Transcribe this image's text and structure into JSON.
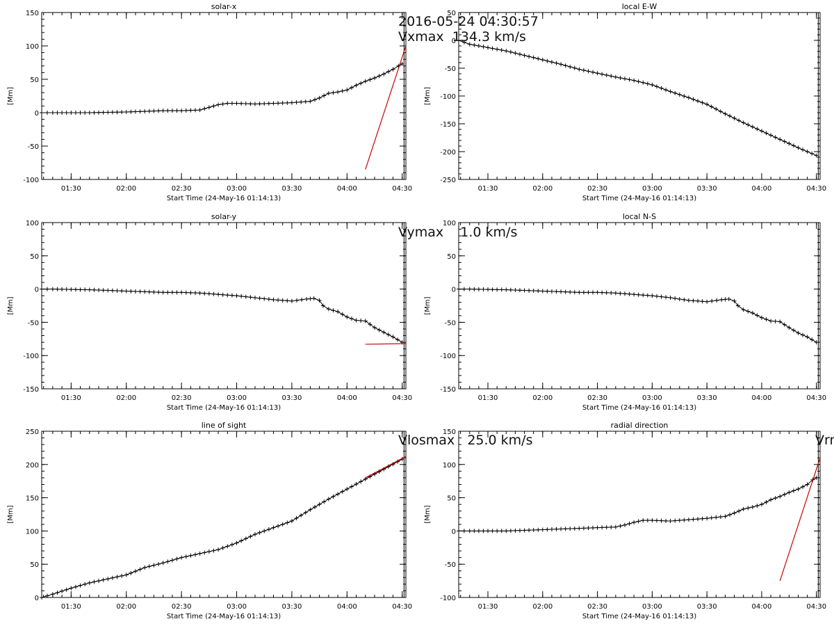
{
  "overlay": {
    "date": "2016-05-24 04:30:57",
    "vx": "Vxmax  134.3 km/s",
    "vy": "Vymax    1.0 km/s",
    "vlos": "Vlosmax   25.0 km/s",
    "vr": "Vrm"
  },
  "chart_data": [
    {
      "type": "line",
      "title": "solar-x",
      "xlabel": "Start Time (24-May-16 01:14:13)",
      "ylabel": "[Mm]",
      "x_ticks": [
        "01:30",
        "02:00",
        "02:30",
        "03:00",
        "03:30",
        "04:00",
        "04:30"
      ],
      "y_ticks": [
        -100,
        -50,
        0,
        50,
        100,
        150
      ],
      "xlim": [
        "01:14",
        "04:32"
      ],
      "ylim": [
        -100,
        150
      ],
      "series": [
        {
          "x": [
            "01:14",
            "01:20",
            "01:30",
            "01:40",
            "01:50",
            "02:00",
            "02:10",
            "02:20",
            "02:30",
            "02:40",
            "02:45",
            "02:50",
            "02:55",
            "03:00",
            "03:10",
            "03:20",
            "03:30",
            "03:40",
            "03:45",
            "03:50",
            "03:55",
            "04:00",
            "04:05",
            "04:10",
            "04:15",
            "04:20",
            "04:25",
            "04:28",
            "04:30"
          ],
          "values": [
            0,
            0,
            0,
            0,
            0.5,
            1,
            2,
            3,
            3,
            4,
            8,
            12,
            14,
            14,
            13,
            14,
            15,
            17,
            22,
            29,
            31,
            34,
            41,
            47,
            52,
            58,
            65,
            70,
            73
          ]
        }
      ],
      "fit_line": {
        "color": "#cc0000",
        "x": [
          "04:10",
          "04:32"
        ],
        "values": [
          -85,
          100
        ]
      },
      "marker_time": "04:31"
    },
    {
      "type": "line",
      "title": "local E-W",
      "xlabel": "Start Time (24-May-16 01:14:13)",
      "ylabel": "[Mm]",
      "x_ticks": [
        "01:30",
        "02:00",
        "02:30",
        "03:00",
        "03:30",
        "04:00",
        "04:30"
      ],
      "y_ticks": [
        -250,
        -200,
        -150,
        -100,
        -50,
        0,
        50
      ],
      "xlim": [
        "01:14",
        "04:32"
      ],
      "ylim": [
        -250,
        50
      ],
      "series": [
        {
          "x": [
            "01:14",
            "01:20",
            "01:30",
            "01:40",
            "01:50",
            "02:00",
            "02:10",
            "02:20",
            "02:30",
            "02:40",
            "02:50",
            "03:00",
            "03:10",
            "03:20",
            "03:30",
            "03:40",
            "03:50",
            "04:00",
            "04:10",
            "04:20",
            "04:30"
          ],
          "values": [
            0,
            -7,
            -13,
            -19,
            -27,
            -35,
            -43,
            -52,
            -59,
            -66,
            -72,
            -80,
            -92,
            -103,
            -115,
            -132,
            -148,
            -163,
            -178,
            -193,
            -207
          ]
        }
      ],
      "marker_time": "04:31"
    },
    {
      "type": "line",
      "title": "solar-y",
      "xlabel": "Start Time (24-May-16 01:14:13)",
      "ylabel": "[Mm]",
      "x_ticks": [
        "01:30",
        "02:00",
        "02:30",
        "03:00",
        "03:30",
        "04:00",
        "04:30"
      ],
      "y_ticks": [
        -150,
        -100,
        -50,
        0,
        50,
        100
      ],
      "xlim": [
        "01:14",
        "04:32"
      ],
      "ylim": [
        -150,
        100
      ],
      "series": [
        {
          "x": [
            "01:14",
            "01:20",
            "01:30",
            "01:40",
            "01:50",
            "02:00",
            "02:10",
            "02:20",
            "02:30",
            "02:40",
            "02:50",
            "03:00",
            "03:10",
            "03:20",
            "03:30",
            "03:38",
            "03:42",
            "03:45",
            "03:47",
            "03:50",
            "03:55",
            "04:00",
            "04:05",
            "04:10",
            "04:15",
            "04:20",
            "04:25",
            "04:30"
          ],
          "values": [
            0,
            0,
            -0.5,
            -1,
            -2,
            -3,
            -4,
            -5,
            -5,
            -6,
            -8,
            -10,
            -13,
            -16,
            -18,
            -15,
            -14,
            -17,
            -25,
            -30,
            -34,
            -42,
            -47,
            -48,
            -58,
            -65,
            -72,
            -80
          ]
        }
      ],
      "fit_line": {
        "color": "#cc0000",
        "x": [
          "04:10",
          "04:32"
        ],
        "values": [
          -83,
          -82
        ]
      },
      "marker_time": "04:31"
    },
    {
      "type": "line",
      "title": "local N-S",
      "xlabel": "Start Time (24-May-16 01:14:13)",
      "ylabel": "[Mm]",
      "x_ticks": [
        "01:30",
        "02:00",
        "02:30",
        "03:00",
        "03:30",
        "04:00",
        "04:30"
      ],
      "y_ticks": [
        -150,
        -100,
        -50,
        0,
        50,
        100
      ],
      "xlim": [
        "01:14",
        "04:32"
      ],
      "ylim": [
        -150,
        100
      ],
      "series": [
        {
          "x": [
            "01:14",
            "01:20",
            "01:30",
            "01:40",
            "01:50",
            "02:00",
            "02:10",
            "02:20",
            "02:30",
            "02:40",
            "02:50",
            "03:00",
            "03:10",
            "03:20",
            "03:30",
            "03:38",
            "03:42",
            "03:45",
            "03:47",
            "03:50",
            "03:55",
            "04:00",
            "04:05",
            "04:10",
            "04:15",
            "04:20",
            "04:25",
            "04:30"
          ],
          "values": [
            0,
            0,
            -0.5,
            -1,
            -2,
            -3,
            -4,
            -5,
            -5,
            -6,
            -8,
            -10,
            -13,
            -17,
            -19,
            -16,
            -15,
            -18,
            -25,
            -31,
            -36,
            -43,
            -48,
            -49,
            -58,
            -66,
            -72,
            -80
          ]
        }
      ],
      "marker_time": "04:31"
    },
    {
      "type": "line",
      "title": "line of sight",
      "xlabel": "Start Time (24-May-16 01:14:13)",
      "ylabel": "[Mm]",
      "x_ticks": [
        "01:30",
        "02:00",
        "02:30",
        "03:00",
        "03:30",
        "04:00",
        "04:30"
      ],
      "y_ticks": [
        0,
        50,
        100,
        150,
        200,
        250
      ],
      "xlim": [
        "01:14",
        "04:32"
      ],
      "ylim": [
        0,
        250
      ],
      "series": [
        {
          "x": [
            "01:14",
            "01:20",
            "01:30",
            "01:40",
            "01:50",
            "02:00",
            "02:10",
            "02:20",
            "02:30",
            "02:40",
            "02:50",
            "03:00",
            "03:10",
            "03:20",
            "03:30",
            "03:40",
            "03:50",
            "04:00",
            "04:10",
            "04:20",
            "04:30"
          ],
          "values": [
            0,
            5,
            14,
            22,
            28,
            34,
            45,
            52,
            60,
            66,
            72,
            82,
            95,
            105,
            115,
            132,
            148,
            163,
            178,
            193,
            208
          ]
        }
      ],
      "fit_line": {
        "color": "#cc0000",
        "x": [
          "04:10",
          "04:32"
        ],
        "values": [
          180,
          212
        ]
      },
      "marker_time": "04:31"
    },
    {
      "type": "line",
      "title": "radial direction",
      "xlabel": "Start Time (24-May-16 01:14:13)",
      "ylabel": "[Mm]",
      "x_ticks": [
        "01:30",
        "02:00",
        "02:30",
        "03:00",
        "03:30",
        "04:00",
        "04:30"
      ],
      "y_ticks": [
        -100,
        -50,
        0,
        50,
        100,
        150
      ],
      "xlim": [
        "01:14",
        "04:32"
      ],
      "ylim": [
        -100,
        150
      ],
      "series": [
        {
          "x": [
            "01:14",
            "01:20",
            "01:30",
            "01:40",
            "01:50",
            "02:00",
            "02:10",
            "02:20",
            "02:30",
            "02:40",
            "02:45",
            "02:50",
            "02:55",
            "03:00",
            "03:10",
            "03:20",
            "03:30",
            "03:40",
            "03:45",
            "03:50",
            "03:55",
            "04:00",
            "04:05",
            "04:10",
            "04:15",
            "04:20",
            "04:25",
            "04:28",
            "04:30"
          ],
          "values": [
            0,
            0,
            0,
            0,
            1,
            2,
            3,
            4,
            5,
            6,
            9,
            13,
            16,
            16,
            15,
            17,
            19,
            22,
            27,
            33,
            36,
            40,
            47,
            52,
            58,
            63,
            70,
            77,
            80
          ]
        }
      ],
      "fit_line": {
        "color": "#cc0000",
        "x": [
          "04:10",
          "04:32"
        ],
        "values": [
          -75,
          110
        ]
      },
      "marker_time": "04:31"
    }
  ]
}
